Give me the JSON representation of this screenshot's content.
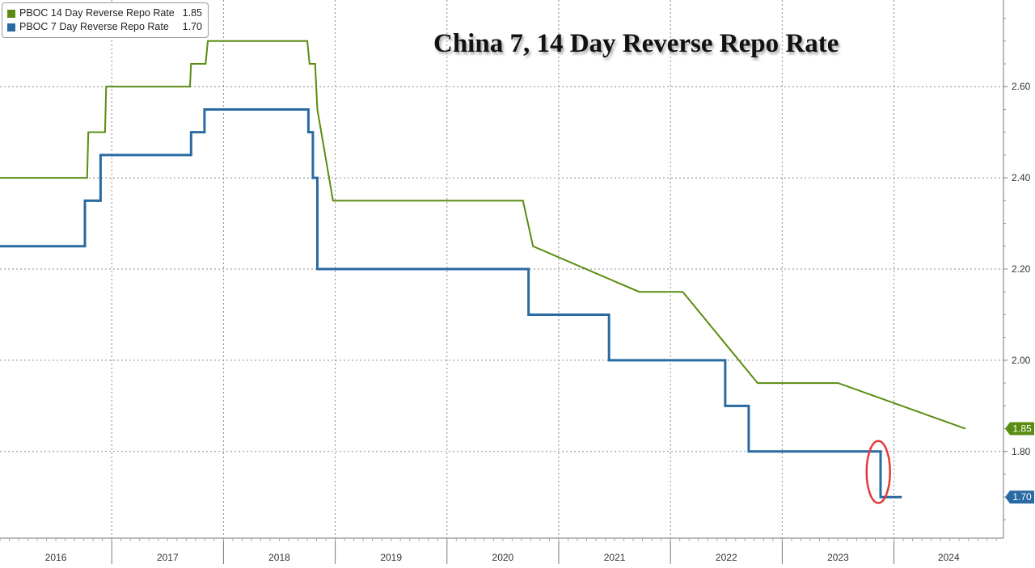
{
  "chart_data": {
    "type": "line",
    "title": "China 7, 14 Day Reverse Repo Rate",
    "xlabel": "",
    "ylabel": "",
    "x_range": [
      2016.0,
      2024.98
    ],
    "ylim": [
      1.61,
      2.79
    ],
    "y_ticks": [
      "2.60",
      "2.40",
      "2.20",
      "2.00",
      "1.80"
    ],
    "x_tick_labels": [
      "2016",
      "2017",
      "2018",
      "2019",
      "2020",
      "2021",
      "2022",
      "2023",
      "2024"
    ],
    "grid": true,
    "legend_position": "top-left",
    "axis_position": "right",
    "series": [
      {
        "name": "PBOC 14 Day Reverse Repo Rate",
        "color": "#5b8c12",
        "last_value": "1.85",
        "interpolation": "linear",
        "points": [
          [
            2016.0,
            2.4
          ],
          [
            2016.78,
            2.4
          ],
          [
            2016.79,
            2.5
          ],
          [
            2016.94,
            2.5
          ],
          [
            2016.95,
            2.6
          ],
          [
            2017.7,
            2.6
          ],
          [
            2017.71,
            2.65
          ],
          [
            2017.84,
            2.65
          ],
          [
            2017.86,
            2.7
          ],
          [
            2018.75,
            2.7
          ],
          [
            2018.77,
            2.65
          ],
          [
            2018.82,
            2.65
          ],
          [
            2018.84,
            2.55
          ],
          [
            2018.98,
            2.35
          ],
          [
            2020.68,
            2.35
          ],
          [
            2020.77,
            2.25
          ],
          [
            2021.72,
            2.15
          ],
          [
            2022.11,
            2.15
          ],
          [
            2022.78,
            1.95
          ],
          [
            2023.5,
            1.95
          ],
          [
            2024.64,
            1.85
          ]
        ]
      },
      {
        "name": "PBOC 7 Day Reverse Repo Rate",
        "color": "#2a6aa3",
        "last_value": "1.70",
        "interpolation": "step",
        "points": [
          [
            2016.0,
            2.25
          ],
          [
            2016.75,
            2.25
          ],
          [
            2016.76,
            2.35
          ],
          [
            2016.89,
            2.35
          ],
          [
            2016.9,
            2.45
          ],
          [
            2017.7,
            2.45
          ],
          [
            2017.71,
            2.5
          ],
          [
            2017.82,
            2.5
          ],
          [
            2017.83,
            2.55
          ],
          [
            2018.75,
            2.55
          ],
          [
            2018.76,
            2.5
          ],
          [
            2018.79,
            2.5
          ],
          [
            2018.8,
            2.4
          ],
          [
            2018.83,
            2.4
          ],
          [
            2018.84,
            2.2
          ],
          [
            2020.72,
            2.2
          ],
          [
            2020.73,
            2.1
          ],
          [
            2021.44,
            2.1
          ],
          [
            2021.45,
            2.0
          ],
          [
            2022.48,
            2.0
          ],
          [
            2022.49,
            1.9
          ],
          [
            2022.69,
            1.9
          ],
          [
            2022.7,
            1.8
          ],
          [
            2023.87,
            1.8
          ],
          [
            2023.88,
            1.7
          ],
          [
            2024.07,
            1.7
          ]
        ]
      }
    ],
    "annotation": {
      "shape": "ellipse",
      "color": "#e23a3a",
      "center": [
        2023.86,
        1.755
      ],
      "rx_years": 0.105,
      "ry_rate": 0.068
    }
  }
}
